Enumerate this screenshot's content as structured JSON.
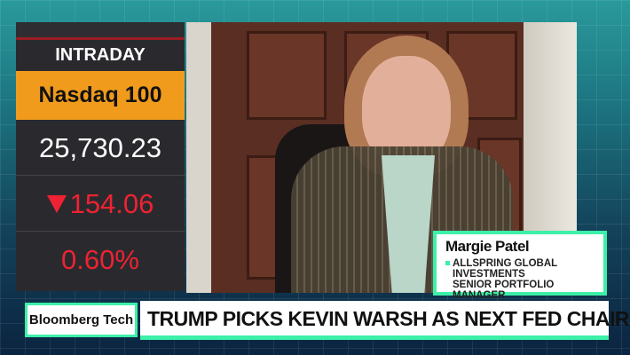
{
  "ticker": {
    "label": "INTRADAY",
    "index_name": "Nasdaq 100",
    "price": "25,730.23",
    "change": "154.06",
    "change_direction": "down",
    "change_icon": "down-triangle-icon",
    "percent": "0.60%",
    "colors": {
      "accent": "#f09b1c",
      "negative": "#ee2233",
      "panel": "#2a2a2e"
    }
  },
  "guest": {
    "name": "Margie Patel",
    "organization_line1": "ALLSPRING GLOBAL",
    "organization_line2": "INVESTMENTS",
    "title": "SENIOR PORTFOLIO MANAGER"
  },
  "lower_third": {
    "show": "Bloomberg Tech",
    "headline": "TRUMP PICKS KEVIN WARSH AS NEXT FED CHAIR",
    "accent_color": "#3cf0a8"
  }
}
